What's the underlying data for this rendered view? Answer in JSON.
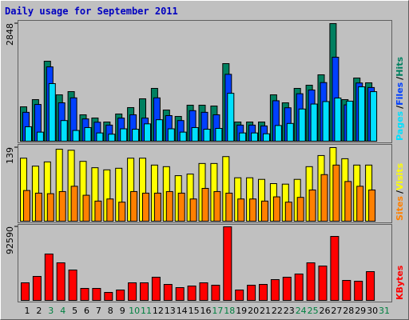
{
  "title": "Daily usage for September 2011",
  "series_separator": "/",
  "chart_data": [
    {
      "type": "bar",
      "ylim": [
        0,
        2848
      ],
      "yticks": [
        2848
      ],
      "series": [
        {
          "name": "Hits",
          "color": "#008060",
          "values": [
            833,
            1007,
            1937,
            1123,
            1201,
            639,
            562,
            465,
            659,
            814,
            1027,
            1279,
            755,
            600,
            872,
            872,
            852,
            1879,
            465,
            465,
            465,
            1123,
            930,
            1279,
            1356,
            1608,
            2848,
            1007,
            1530,
            1414,
            null
          ]
        },
        {
          "name": "Files",
          "color": "#0040ff",
          "values": [
            700,
            890,
            1800,
            930,
            1050,
            540,
            460,
            390,
            560,
            640,
            560,
            1050,
            620,
            500,
            740,
            700,
            640,
            1620,
            390,
            390,
            370,
            980,
            810,
            1150,
            1240,
            1420,
            2034,
            880,
            1410,
            1300,
            null
          ]
        },
        {
          "name": "Pages",
          "color": "#00e0ff",
          "values": [
            350,
            220,
            1395,
            500,
            260,
            330,
            200,
            170,
            300,
            290,
            420,
            520,
            300,
            220,
            330,
            290,
            310,
            1160,
            200,
            200,
            180,
            380,
            430,
            780,
            900,
            960,
            1046,
            970,
            1317,
            1200,
            null
          ]
        }
      ]
    },
    {
      "type": "bar",
      "ylim": [
        0,
        139
      ],
      "yticks": [
        139
      ],
      "series": [
        {
          "name": "Visits",
          "color": "#ffff00",
          "values": [
            119,
            104,
            112,
            136,
            134,
            113,
            101,
            97,
            100,
            119,
            119,
            106,
            103,
            86,
            89,
            109,
            109,
            122,
            82,
            82,
            79,
            71,
            70,
            79,
            103,
            124,
            139,
            118,
            106,
            106,
            null
          ]
        },
        {
          "name": "Sites",
          "color": "#ff8000",
          "values": [
            58,
            53,
            52,
            56,
            66,
            49,
            38,
            42,
            36,
            56,
            53,
            53,
            56,
            53,
            42,
            62,
            56,
            53,
            42,
            42,
            38,
            46,
            36,
            45,
            59,
            88,
            106,
            75,
            66,
            59,
            null
          ]
        }
      ]
    },
    {
      "type": "bar",
      "ylim": [
        0,
        92590
      ],
      "yticks": [
        92590
      ],
      "categories": [
        "1",
        "2",
        "3",
        "4",
        "5",
        "6",
        "7",
        "8",
        "9",
        "10",
        "11",
        "12",
        "13",
        "14",
        "15",
        "16",
        "17",
        "18",
        "19",
        "20",
        "21",
        "22",
        "23",
        "24",
        "25",
        "26",
        "27",
        "28",
        "29",
        "30",
        "31"
      ],
      "category_colors": [
        "#000000",
        "#000000",
        "#008040",
        "#008040",
        "#000000",
        "#000000",
        "#000000",
        "#000000",
        "#000000",
        "#008040",
        "#008040",
        "#000000",
        "#000000",
        "#000000",
        "#000000",
        "#000000",
        "#008040",
        "#008040",
        "#000000",
        "#000000",
        "#000000",
        "#000000",
        "#000000",
        "#008040",
        "#008040",
        "#000000",
        "#000000",
        "#000000",
        "#000000",
        "#000000",
        "#008040"
      ],
      "series": [
        {
          "name": "KBytes",
          "color": "#ff0000",
          "values": [
            22140,
            30180,
            58350,
            47280,
            38230,
            15090,
            15090,
            10060,
            13080,
            22140,
            22140,
            29180,
            20120,
            16100,
            18110,
            22140,
            19120,
            92590,
            13080,
            19120,
            20120,
            26160,
            29180,
            33200,
            47280,
            43260,
            80490,
            25150,
            24150,
            36220,
            null
          ]
        }
      ]
    }
  ]
}
